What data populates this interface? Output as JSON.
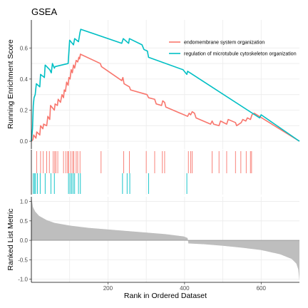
{
  "chart_data": {
    "type": "line",
    "title": "GSEA",
    "xlabel": "Rank in Ordered Dataset",
    "xlim": [
      0,
      700
    ],
    "x_ticks": [
      200,
      400,
      600
    ],
    "x_tick_labels": [
      "200",
      "400",
      "600"
    ],
    "legend": {
      "placement": "top-right"
    },
    "colors": {
      "series1": "#F8766D",
      "series2": "#00BFC4",
      "bars": "#bebebe",
      "zero_line": "#7f7f7f"
    },
    "running_es": {
      "ylabel": "Running Enrichment Score",
      "ylim": [
        -0.05,
        0.78
      ],
      "y_ticks": [
        0.0,
        0.2,
        0.4,
        0.6
      ],
      "y_tick_labels": [
        "0.0",
        "0.2",
        "0.4",
        "0.6"
      ],
      "grid": true,
      "series": [
        {
          "name": "endomembrane system organization",
          "color": "#F8766D",
          "points": [
            [
              0,
              0
            ],
            [
              4,
              0.01
            ],
            [
              6,
              0.04
            ],
            [
              12,
              0.02
            ],
            [
              14,
              0.06
            ],
            [
              22,
              0.04
            ],
            [
              24,
              0.1
            ],
            [
              30,
              0.08
            ],
            [
              32,
              0.11
            ],
            [
              40,
              0.1
            ],
            [
              43,
              0.16
            ],
            [
              48,
              0.14
            ],
            [
              50,
              0.23
            ],
            [
              60,
              0.2
            ],
            [
              62,
              0.24
            ],
            [
              68,
              0.23
            ],
            [
              70,
              0.27
            ],
            [
              76,
              0.25
            ],
            [
              80,
              0.3
            ],
            [
              84,
              0.28
            ],
            [
              86,
              0.33
            ],
            [
              89,
              0.32
            ],
            [
              92,
              0.38
            ],
            [
              96,
              0.36
            ],
            [
              98,
              0.41
            ],
            [
              101,
              0.4
            ],
            [
              104,
              0.46
            ],
            [
              107,
              0.44
            ],
            [
              110,
              0.49
            ],
            [
              113,
              0.47
            ],
            [
              117,
              0.52
            ],
            [
              121,
              0.51
            ],
            [
              124,
              0.54
            ],
            [
              126,
              0.53
            ],
            [
              128,
              0.56
            ],
            [
              180,
              0.5
            ],
            [
              183,
              0.48
            ],
            [
              236,
              0.39
            ],
            [
              239,
              0.41
            ],
            [
              242,
              0.37
            ],
            [
              256,
              0.35
            ],
            [
              259,
              0.33
            ],
            [
              302,
              0.3
            ],
            [
              306,
              0.28
            ],
            [
              322,
              0.27
            ],
            [
              326,
              0.24
            ],
            [
              340,
              0.23
            ],
            [
              343,
              0.26
            ],
            [
              348,
              0.25
            ],
            [
              351,
              0.22
            ],
            [
              408,
              0.16
            ],
            [
              412,
              0.18
            ],
            [
              416,
              0.17
            ],
            [
              420,
              0.19
            ],
            [
              426,
              0.18
            ],
            [
              430,
              0.15
            ],
            [
              468,
              0.11
            ],
            [
              472,
              0.13
            ],
            [
              476,
              0.11
            ],
            [
              490,
              0.1
            ],
            [
              494,
              0.13
            ],
            [
              510,
              0.11
            ],
            [
              514,
              0.14
            ],
            [
              533,
              0.12
            ],
            [
              536,
              0.1
            ],
            [
              548,
              0.12
            ],
            [
              552,
              0.14
            ],
            [
              560,
              0.13
            ],
            [
              564,
              0.15
            ],
            [
              572,
              0.14
            ],
            [
              576,
              0.17
            ],
            [
              582,
              0.18
            ],
            [
              700,
              0.0
            ]
          ]
        },
        {
          "name": "regulation of microtubule cytoskeleton organization",
          "color": "#00BFC4",
          "points": [
            [
              0,
              0
            ],
            [
              3,
              0.08
            ],
            [
              5,
              0.23
            ],
            [
              7,
              0.28
            ],
            [
              10,
              0.3
            ],
            [
              13,
              0.37
            ],
            [
              22,
              0.35
            ],
            [
              24,
              0.43
            ],
            [
              34,
              0.41
            ],
            [
              36,
              0.49
            ],
            [
              48,
              0.46
            ],
            [
              52,
              0.44
            ],
            [
              55,
              0.5
            ],
            [
              60,
              0.47
            ],
            [
              62,
              0.48
            ],
            [
              96,
              0.5
            ],
            [
              100,
              0.65
            ],
            [
              110,
              0.62
            ],
            [
              113,
              0.66
            ],
            [
              123,
              0.64
            ],
            [
              127,
              0.7
            ],
            [
              129,
              0.72
            ],
            [
              236,
              0.63
            ],
            [
              240,
              0.66
            ],
            [
              254,
              0.63
            ],
            [
              256,
              0.66
            ],
            [
              289,
              0.62
            ],
            [
              294,
              0.59
            ],
            [
              303,
              0.58
            ],
            [
              306,
              0.54
            ],
            [
              396,
              0.46
            ],
            [
              406,
              0.43
            ],
            [
              408,
              0.45
            ],
            [
              596,
              0.15
            ],
            [
              600,
              0.17
            ],
            [
              700,
              0.0
            ]
          ]
        }
      ]
    },
    "hits": {
      "series1_ranks": [
        14,
        24,
        31,
        40,
        47,
        57,
        61,
        64,
        69,
        84,
        90,
        95,
        97,
        103,
        108,
        111,
        117,
        121,
        127,
        182,
        241,
        256,
        300,
        322,
        342,
        348,
        410,
        416,
        420,
        472,
        490,
        510,
        533,
        547,
        561,
        572,
        575
      ],
      "series2_ranks": [
        5,
        8,
        11,
        16,
        23,
        36,
        51,
        60,
        97,
        101,
        105,
        109,
        113,
        123,
        128,
        238,
        250,
        257,
        306,
        406
      ]
    },
    "ranked_metric": {
      "ylabel": "Ranked List Metric",
      "ylim": [
        -1.08,
        1.12
      ],
      "y_ticks": [
        -1.0,
        -0.5,
        0.0,
        0.5,
        1.0
      ],
      "y_tick_labels": [
        "-1.0",
        "-0.5",
        "0.0",
        "0.5",
        "1.0"
      ],
      "n": 700,
      "profile": [
        [
          0,
          1.12
        ],
        [
          4,
          0.86
        ],
        [
          10,
          0.74
        ],
        [
          20,
          0.63
        ],
        [
          40,
          0.52
        ],
        [
          60,
          0.45
        ],
        [
          100,
          0.38
        ],
        [
          150,
          0.32
        ],
        [
          200,
          0.28
        ],
        [
          250,
          0.24
        ],
        [
          300,
          0.2
        ],
        [
          350,
          0.16
        ],
        [
          398,
          0.1
        ],
        [
          408,
          0.06
        ],
        [
          410,
          -0.08
        ],
        [
          450,
          -0.1
        ],
        [
          500,
          -0.14
        ],
        [
          550,
          -0.19
        ],
        [
          600,
          -0.25
        ],
        [
          650,
          -0.36
        ],
        [
          680,
          -0.48
        ],
        [
          692,
          -0.6
        ],
        [
          697,
          -0.75
        ],
        [
          700,
          -1.05
        ]
      ]
    }
  }
}
